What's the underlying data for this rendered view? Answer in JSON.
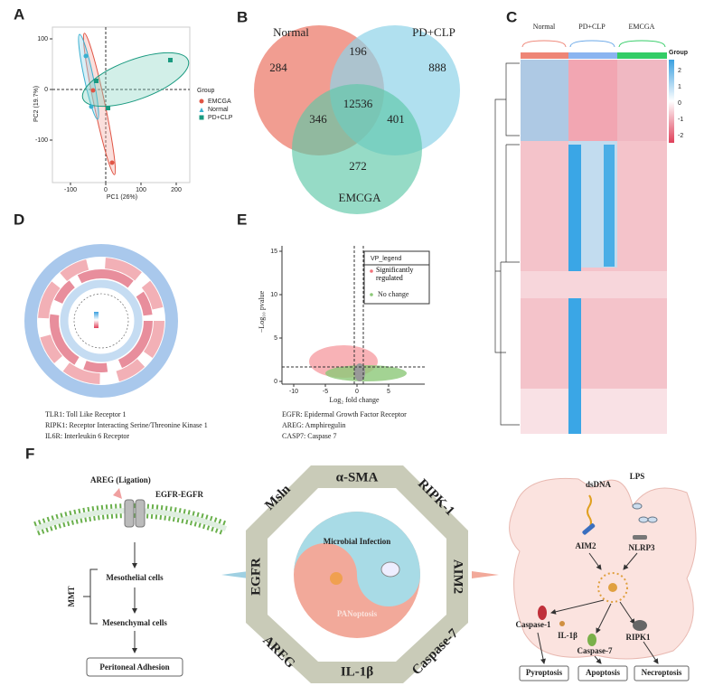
{
  "panels": {
    "A": {
      "label": "A",
      "x_label": "PC1 (26%)",
      "y_label": "PC2 (19.7%)",
      "xticks": [
        -100,
        0,
        100,
        200
      ],
      "yticks": [
        100,
        0,
        -100
      ],
      "legend_title": "Group",
      "legend": [
        "EMCGA",
        "Normal",
        "PD+CLP"
      ]
    },
    "B": {
      "label": "B",
      "sets": [
        "Normal",
        "PD+CLP",
        "EMCGA"
      ],
      "counts": [
        284,
        196,
        888,
        12536,
        346,
        401,
        272
      ]
    },
    "C": {
      "label": "C",
      "groups": [
        "Normal",
        "PD+CLP",
        "EMCGA"
      ],
      "legend_title": "Group",
      "scale": [
        2,
        1,
        0,
        -1,
        -2
      ]
    },
    "D": {
      "label": "D",
      "notes": [
        "TLR1: Toll Like Receptor 1",
        "RIPK1: Receptor Interacting Serine/Threonine Kinase 1",
        "IL6R: Interleukin 6 Receptor"
      ]
    },
    "E": {
      "label": "E",
      "legend_title": "VP_legend",
      "legend": [
        "Significantly regulated",
        "No change"
      ],
      "x_label": "Log₂ fold change",
      "y_label": "−Log₁₀ pvalue",
      "xticks": [
        -10,
        -5,
        0,
        5
      ],
      "yticks": [
        0,
        5,
        10,
        15
      ],
      "notes": [
        "EGFR: Epidermal Growth Factor Receptor",
        "AREG: Amphiregulin",
        "CASP7: Caspase 7"
      ]
    },
    "F": {
      "label": "F",
      "left": {
        "ligand": "AREG (Ligation)",
        "receptor": "EGFR-EGFR",
        "process": "MMT",
        "from": "Mesothelial cells",
        "to": "Mesenchymal cells",
        "outcome": "Peritoneal Adhesion"
      },
      "octagon": [
        "α-SMA",
        "RIPK-1",
        "AIM2",
        "Caspase-7",
        "IL-1β",
        "AREG",
        "EGFR",
        "Msln"
      ],
      "center": [
        "Microbial Infection",
        "PANoptosis"
      ],
      "right": {
        "dsdna": "dsDNA",
        "lps": "LPS",
        "aim2": "AIM2",
        "nlrp3": "NLRP3",
        "casp1": "Caspase-1",
        "il1b": "IL-1β",
        "casp7": "Caspase-7",
        "ripk1": "RIPK1",
        "outcomes": [
          "Pyroptosis",
          "Apoptosis",
          "Necroptosis"
        ]
      }
    }
  }
}
